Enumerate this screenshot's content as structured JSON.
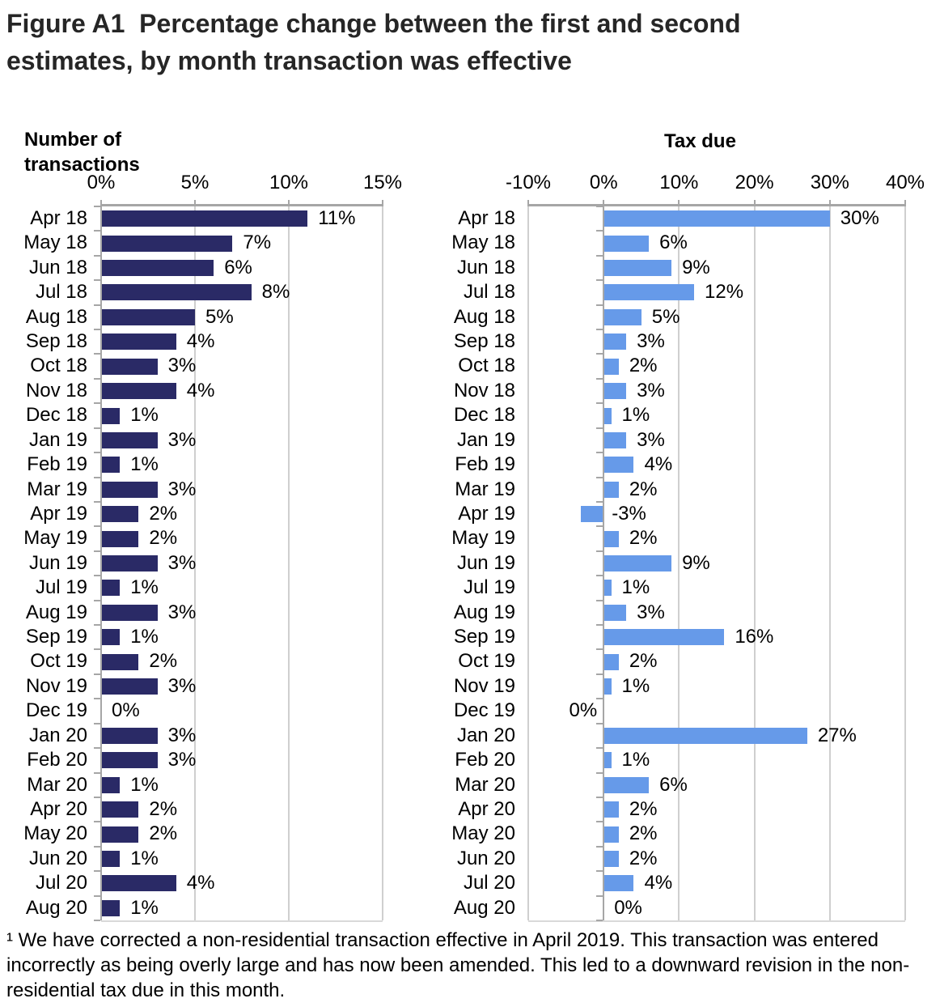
{
  "title": "Figure A1  Percentage change between the first and second estimates, by month transaction was effective",
  "footnote": "¹ We have corrected a non-residential transaction effective in April 2019. This transaction was entered incorrectly as being overly large and has now been amended. This led to a downward revision in the non-residential tax due in this month.",
  "colors": {
    "navy_bar": "#2A2A66",
    "blue_bar": "#669AE9",
    "gridline": "#CFCFCF",
    "axis": "#A6A6A6",
    "title_text": "#262626",
    "label_text": "#000000"
  },
  "chart_data": [
    {
      "type": "bar",
      "orientation": "horizontal",
      "title": "Number of transactions",
      "bar_color": "#2A2A66",
      "xlim": [
        0,
        15
      ],
      "xtick_values": [
        0,
        5,
        10,
        15
      ],
      "xtick_labels": [
        "0%",
        "5%",
        "10%",
        "15%"
      ],
      "grid": true,
      "categories": [
        "Apr 18",
        "May 18",
        "Jun 18",
        "Jul 18",
        "Aug 18",
        "Sep 18",
        "Oct 18",
        "Nov 18",
        "Dec 18",
        "Jan 19",
        "Feb 19",
        "Mar 19",
        "Apr 19",
        "May 19",
        "Jun 19",
        "Jul 19",
        "Aug 19",
        "Sep 19",
        "Oct 19",
        "Nov 19",
        "Dec 19",
        "Jan 20",
        "Feb 20",
        "Mar 20",
        "Apr 20",
        "May 20",
        "Jun 20",
        "Jul 20",
        "Aug 20"
      ],
      "values": [
        11,
        7,
        6,
        8,
        5,
        4,
        3,
        4,
        1,
        3,
        1,
        3,
        2,
        2,
        3,
        1,
        3,
        1,
        2,
        3,
        0,
        3,
        3,
        1,
        2,
        2,
        1,
        4,
        1
      ],
      "labels": [
        "11%",
        "7%",
        "6%",
        "8%",
        "5%",
        "4%",
        "3%",
        "4%",
        "1%",
        "3%",
        "1%",
        "3%",
        "2%",
        "2%",
        "3%",
        "1%",
        "3%",
        "1%",
        "2%",
        "3%",
        "0%",
        "3%",
        "3%",
        "1%",
        "2%",
        "2%",
        "1%",
        "4%",
        "1%"
      ],
      "label_left_indices": []
    },
    {
      "type": "bar",
      "orientation": "horizontal",
      "title": "Tax due",
      "bar_color": "#669AE9",
      "xlim": [
        -10,
        40
      ],
      "xtick_values": [
        -10,
        0,
        10,
        20,
        30,
        40
      ],
      "xtick_labels": [
        "-10%",
        "0%",
        "10%",
        "20%",
        "30%",
        "40%"
      ],
      "grid": true,
      "categories": [
        "Apr 18",
        "May 18",
        "Jun 18",
        "Jul 18",
        "Aug 18",
        "Sep 18",
        "Oct 18",
        "Nov 18",
        "Dec 18",
        "Jan 19",
        "Feb 19",
        "Mar 19",
        "Apr 19",
        "May 19",
        "Jun 19",
        "Jul 19",
        "Aug 19",
        "Sep 19",
        "Oct 19",
        "Nov 19",
        "Dec 19",
        "Jan 20",
        "Feb 20",
        "Mar 20",
        "Apr 20",
        "May 20",
        "Jun 20",
        "Jul 20",
        "Aug 20"
      ],
      "values": [
        30,
        6,
        9,
        12,
        5,
        3,
        2,
        3,
        1,
        3,
        4,
        2,
        -3,
        2,
        9,
        1,
        3,
        16,
        2,
        1,
        0,
        27,
        1,
        6,
        2,
        2,
        2,
        4,
        0
      ],
      "labels": [
        "30%",
        "6%",
        "9%",
        "12%",
        "5%",
        "3%",
        "2%",
        "3%",
        "1%",
        "3%",
        "4%",
        "2%",
        "-3%",
        "2%",
        "9%",
        "1%",
        "3%",
        "16%",
        "2%",
        "1%",
        "0%",
        "27%",
        "1%",
        "6%",
        "2%",
        "2%",
        "2%",
        "4%",
        "0%"
      ],
      "label_left_indices": [
        20
      ]
    }
  ]
}
